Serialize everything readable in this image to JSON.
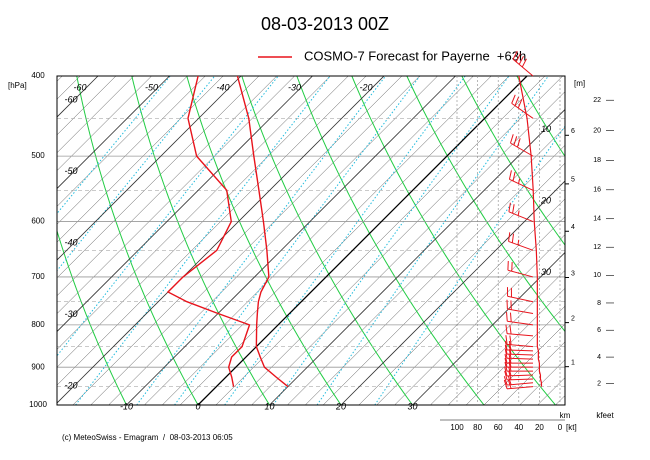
{
  "chart_data": {
    "type": "emagram",
    "title": "08-03-2013 00Z",
    "series": [
      {
        "name": "COSMO-7 Forecast for Payerne  +63h",
        "color": "#e8141c",
        "pressure": [
          950,
          925,
          900,
          875,
          850,
          800,
          775,
          750,
          730,
          700,
          650,
          600,
          550,
          500,
          450,
          400
        ],
        "temperature": [
          10,
          7,
          4,
          2,
          0,
          -3,
          -4.5,
          -6,
          -7,
          -8,
          -12,
          -16.5,
          -21.5,
          -27,
          -33,
          -40.5
        ],
        "dewpoint": [
          2.4,
          0.8,
          -1,
          -2,
          -2,
          -4,
          -10,
          -16,
          -20,
          -20,
          -19,
          -21,
          -26,
          -35,
          -41.5,
          -46
        ]
      }
    ],
    "y_label": "[hPa]",
    "log_y": true,
    "ylim": [
      1000,
      400
    ],
    "yticks": [
      400,
      500,
      600,
      700,
      800,
      900,
      1000
    ],
    "xticks": [
      -60,
      -50,
      -40,
      -30,
      -20,
      -10,
      0,
      10,
      20,
      30
    ],
    "height_axis": {
      "label": "[m]",
      "unit": "km",
      "ticks": [
        1,
        2,
        3,
        4,
        5,
        6
      ]
    },
    "feet_axis": {
      "unit": "kfeet",
      "ticks": [
        2,
        4,
        6,
        8,
        10,
        12,
        14,
        16,
        18,
        20,
        22
      ]
    },
    "wind_axis": {
      "label": "[kt]",
      "xlim": [
        100,
        0
      ],
      "ticks": [
        100,
        80,
        60,
        40,
        20,
        0
      ]
    },
    "wind": {
      "pressure": [
        950,
        940,
        930,
        920,
        910,
        900,
        890,
        880,
        870,
        860,
        850,
        825,
        800,
        775,
        750,
        700,
        650,
        600,
        550,
        500,
        450,
        400
      ],
      "speed": [
        18,
        18,
        19,
        19,
        20,
        20,
        20,
        21,
        21,
        21,
        22,
        22,
        22,
        22,
        22,
        22,
        23,
        25,
        26,
        28,
        32,
        40
      ],
      "direction": [
        265,
        265,
        268,
        268,
        270,
        270,
        270,
        272,
        272,
        272,
        275,
        275,
        278,
        280,
        282,
        285,
        290,
        292,
        295,
        300,
        305,
        310
      ]
    },
    "footer": "(c) MeteoSwiss - Emagram  /  08-03-2013 06:05"
  }
}
